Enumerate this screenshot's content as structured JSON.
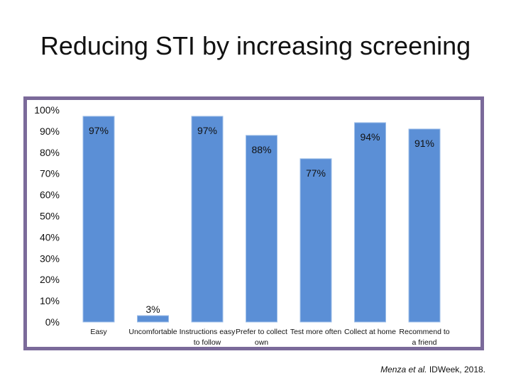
{
  "slide": {
    "title": "Reducing STI by increasing screening",
    "citation": {
      "author": "Menza",
      "etal": "et al.",
      "venue": "IDWeek, 2018."
    }
  },
  "chart_data": {
    "type": "bar",
    "title": "",
    "xlabel": "",
    "ylabel": "",
    "ylim": [
      0,
      100
    ],
    "yticks": [
      "0%",
      "10%",
      "20%",
      "30%",
      "40%",
      "50%",
      "60%",
      "70%",
      "80%",
      "90%",
      "100%"
    ],
    "categories": [
      [
        "Easy"
      ],
      [
        "Uncomfortable"
      ],
      [
        "Instructions easy",
        "to follow"
      ],
      [
        "Prefer to collect",
        "own"
      ],
      [
        "Test more often"
      ],
      [
        "Collect at home"
      ],
      [
        "Recommend to",
        "a friend"
      ]
    ],
    "values": [
      97,
      3,
      97,
      88,
      77,
      94,
      91
    ],
    "data_labels": [
      "97%",
      "3%",
      "97%",
      "88%",
      "77%",
      "94%",
      "91%"
    ],
    "bar_color": "#5b8fd6",
    "frame_color": "#7b6a9a"
  }
}
